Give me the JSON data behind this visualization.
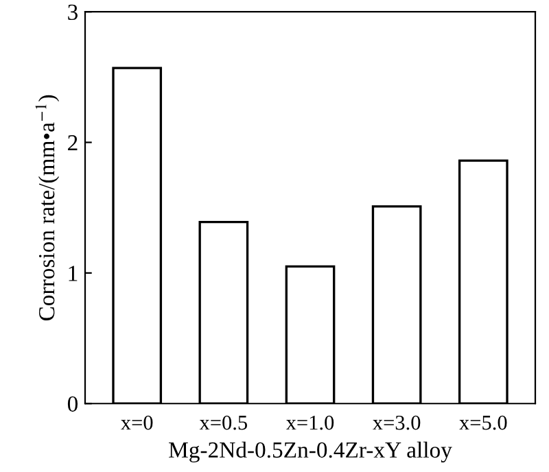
{
  "chart_data": {
    "type": "bar",
    "categories": [
      "x=0",
      "x=0.5",
      "x=1.0",
      "x=3.0",
      "x=5.0"
    ],
    "values": [
      2.57,
      1.39,
      1.05,
      1.51,
      1.86
    ],
    "color": "#ffffff",
    "xlabel": "Mg-2Nd-0.5Zn-0.4Zr-xY alloy",
    "ylabel": "Corrosion rate/(mm•a$^{−1}$)",
    "ylim": [
      0,
      3
    ],
    "yticks": [
      0,
      1,
      2,
      3
    ],
    "grid": false,
    "legend": false
  }
}
